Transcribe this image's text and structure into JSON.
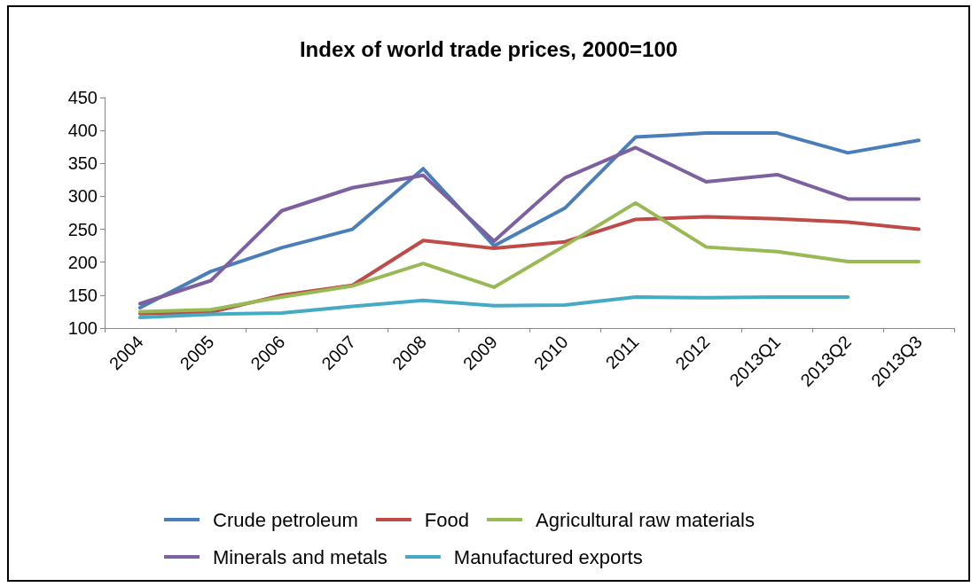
{
  "chart_data": {
    "type": "line",
    "title": "Index of world trade prices, 2000=100",
    "categories": [
      "2004",
      "2005",
      "2006",
      "2007",
      "2008",
      "2009",
      "2010",
      "2011",
      "2012",
      "2013Q1",
      "2013Q2",
      "2013Q3"
    ],
    "series": [
      {
        "name": "Crude petroleum",
        "color": "#4a7ebb",
        "values": [
          131,
          186,
          222,
          250,
          342,
          225,
          282,
          390,
          396,
          396,
          366,
          385
        ]
      },
      {
        "name": "Food",
        "color": "#be4b48",
        "values": [
          122,
          124,
          150,
          165,
          233,
          221,
          231,
          265,
          269,
          266,
          261,
          250
        ]
      },
      {
        "name": "Agricultural raw materials",
        "color": "#98b954",
        "values": [
          125,
          128,
          147,
          164,
          198,
          162,
          225,
          290,
          223,
          216,
          201,
          201
        ]
      },
      {
        "name": "Minerals and metals",
        "color": "#7d60a0",
        "values": [
          137,
          172,
          278,
          313,
          332,
          232,
          328,
          374,
          322,
          333,
          296,
          296
        ]
      },
      {
        "name": "Manufactured exports",
        "color": "#46aac5",
        "values": [
          116,
          121,
          123,
          133,
          142,
          134,
          135,
          147,
          146,
          147,
          147,
          null
        ]
      }
    ],
    "ylim": [
      100,
      450
    ],
    "yticks": [
      100,
      150,
      200,
      250,
      300,
      350,
      400,
      450
    ],
    "grid": false,
    "legend": "bottom",
    "marker": "none",
    "line_style": "solid"
  }
}
